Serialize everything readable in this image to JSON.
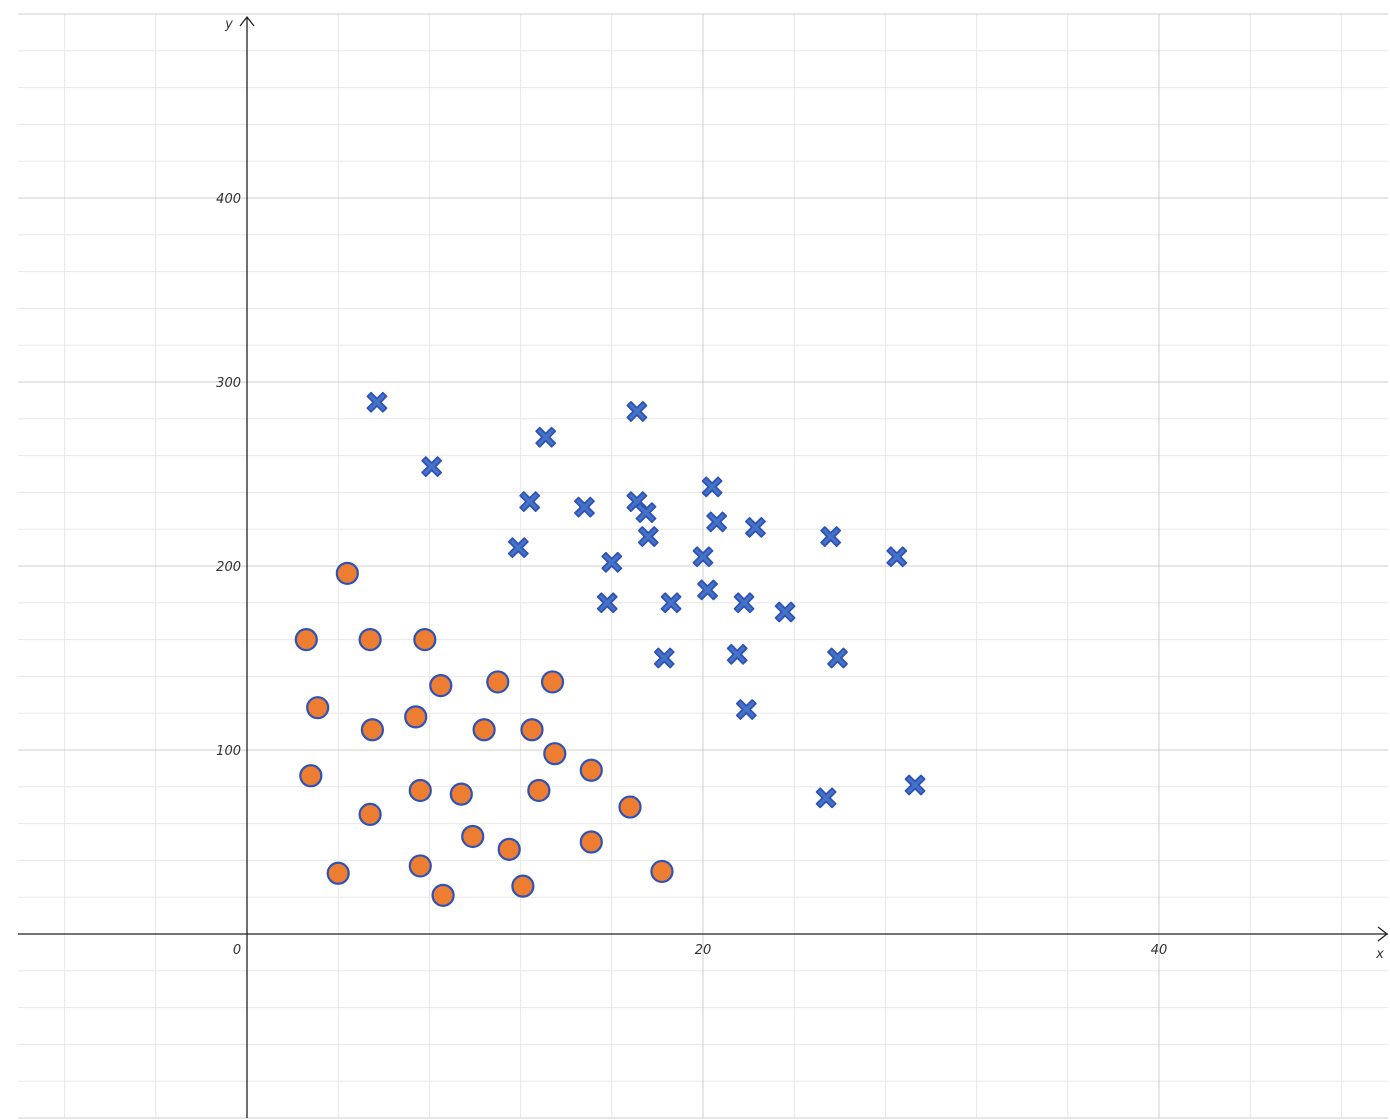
{
  "chart_data": {
    "type": "scatter",
    "xlabel": "x",
    "ylabel": "y",
    "xlim": [
      -10,
      50
    ],
    "ylim": [
      -100,
      500
    ],
    "x_ticks": [
      0,
      20,
      40
    ],
    "y_ticks": [
      100,
      200,
      300,
      400
    ],
    "x_tick_labels": [
      "0",
      "20",
      "40"
    ],
    "y_tick_labels": [
      "100",
      "200",
      "300",
      "400"
    ],
    "grid": true,
    "minor_grid_step": {
      "x": 4,
      "y": 20
    },
    "major_grid_step": {
      "x": 20,
      "y": 100
    },
    "series": [
      {
        "marker": "circle",
        "color": "#ED7D31",
        "edge_color": "#2F52B8",
        "points": [
          [
            2.6,
            160
          ],
          [
            4.4,
            196
          ],
          [
            5.4,
            160
          ],
          [
            7.8,
            160
          ],
          [
            3.1,
            123
          ],
          [
            5.5,
            111
          ],
          [
            7.4,
            118
          ],
          [
            8.5,
            135
          ],
          [
            11.0,
            137
          ],
          [
            13.4,
            137
          ],
          [
            10.4,
            111
          ],
          [
            12.5,
            111
          ],
          [
            2.8,
            86
          ],
          [
            13.5,
            98
          ],
          [
            15.1,
            89
          ],
          [
            7.6,
            78
          ],
          [
            9.4,
            76
          ],
          [
            12.8,
            78
          ],
          [
            5.4,
            65
          ],
          [
            16.8,
            69
          ],
          [
            9.9,
            53
          ],
          [
            11.5,
            46
          ],
          [
            15.1,
            50
          ],
          [
            4.0,
            33
          ],
          [
            7.6,
            37
          ],
          [
            8.6,
            21
          ],
          [
            12.1,
            26
          ],
          [
            18.2,
            34
          ]
        ]
      },
      {
        "marker": "x",
        "color": "#4472C4",
        "edge_color": "#2F52B8",
        "points": [
          [
            5.7,
            289
          ],
          [
            17.1,
            284
          ],
          [
            13.1,
            270
          ],
          [
            8.1,
            254
          ],
          [
            12.4,
            235
          ],
          [
            14.8,
            232
          ],
          [
            17.1,
            235
          ],
          [
            17.5,
            229
          ],
          [
            20.4,
            243
          ],
          [
            20.6,
            224
          ],
          [
            22.3,
            221
          ],
          [
            25.6,
            216
          ],
          [
            28.5,
            205
          ],
          [
            11.9,
            210
          ],
          [
            17.6,
            216
          ],
          [
            16.0,
            202
          ],
          [
            20.0,
            205
          ],
          [
            15.8,
            180
          ],
          [
            18.6,
            180
          ],
          [
            20.2,
            187
          ],
          [
            21.8,
            180
          ],
          [
            23.6,
            175
          ],
          [
            18.3,
            150
          ],
          [
            21.5,
            152
          ],
          [
            25.9,
            150
          ],
          [
            21.9,
            122
          ],
          [
            25.4,
            74
          ],
          [
            29.3,
            81
          ]
        ]
      }
    ]
  }
}
